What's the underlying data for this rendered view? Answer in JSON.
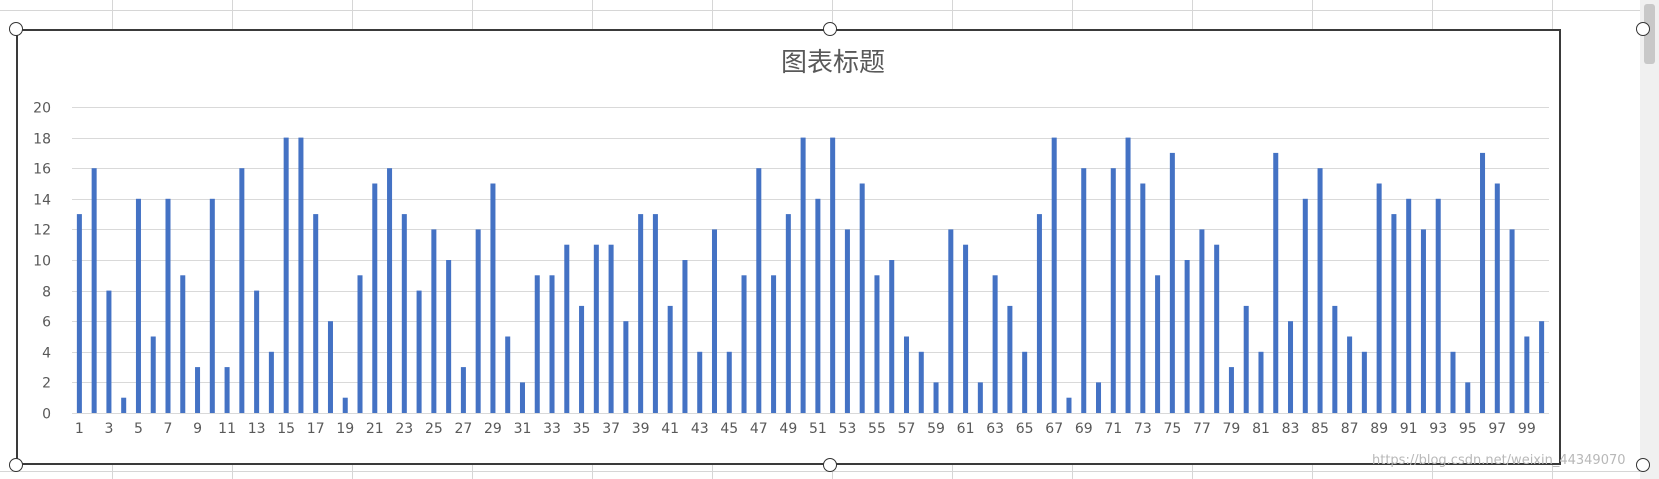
{
  "chart_data": {
    "type": "bar",
    "title": "图表标题",
    "xlabel": "",
    "ylabel": "",
    "ylim": [
      0,
      20
    ],
    "yticks": [
      0,
      2,
      4,
      6,
      8,
      10,
      12,
      14,
      16,
      18,
      20
    ],
    "categories": [
      1,
      2,
      3,
      4,
      5,
      6,
      7,
      8,
      9,
      10,
      11,
      12,
      13,
      14,
      15,
      16,
      17,
      18,
      19,
      20,
      21,
      22,
      23,
      24,
      25,
      26,
      27,
      28,
      29,
      30,
      31,
      32,
      33,
      34,
      35,
      36,
      37,
      38,
      39,
      40,
      41,
      42,
      43,
      44,
      45,
      46,
      47,
      48,
      49,
      50,
      51,
      52,
      53,
      54,
      55,
      56,
      57,
      58,
      59,
      60,
      61,
      62,
      63,
      64,
      65,
      66,
      67,
      68,
      69,
      70,
      71,
      72,
      73,
      74,
      75,
      76,
      77,
      78,
      79,
      80,
      81,
      82,
      83,
      84,
      85,
      86,
      87,
      88,
      89,
      90,
      91,
      92,
      93,
      94,
      95,
      96,
      97,
      98,
      99,
      100
    ],
    "xtick_labels": [
      1,
      3,
      5,
      7,
      9,
      11,
      13,
      15,
      17,
      19,
      21,
      23,
      25,
      27,
      29,
      31,
      33,
      35,
      37,
      39,
      41,
      43,
      45,
      47,
      49,
      51,
      53,
      55,
      57,
      59,
      61,
      63,
      65,
      67,
      69,
      71,
      73,
      75,
      77,
      79,
      81,
      83,
      85,
      87,
      89,
      91,
      93,
      95,
      97,
      99
    ],
    "values": [
      13,
      16,
      8,
      1,
      14,
      5,
      14,
      9,
      3,
      14,
      3,
      16,
      8,
      4,
      18,
      18,
      13,
      6,
      1,
      9,
      15,
      16,
      13,
      8,
      12,
      10,
      3,
      12,
      15,
      5,
      2,
      9,
      9,
      11,
      7,
      11,
      11,
      6,
      13,
      13,
      7,
      10,
      4,
      12,
      4,
      9,
      16,
      9,
      13,
      18,
      14,
      18,
      12,
      15,
      9,
      10,
      5,
      4,
      2,
      12,
      11,
      2,
      9,
      7,
      4,
      13,
      18,
      1,
      16,
      2,
      16,
      18,
      15,
      9,
      17,
      10,
      12,
      11,
      3,
      7,
      4,
      17,
      6,
      14,
      16,
      7,
      5,
      4,
      15,
      13,
      14,
      12,
      14,
      4,
      2,
      17,
      15,
      12,
      5,
      6
    ],
    "grid": true,
    "legend": "none",
    "bar_color": "#4472c4"
  },
  "watermark": "https://blog.csdn.net/weixin_44349070"
}
